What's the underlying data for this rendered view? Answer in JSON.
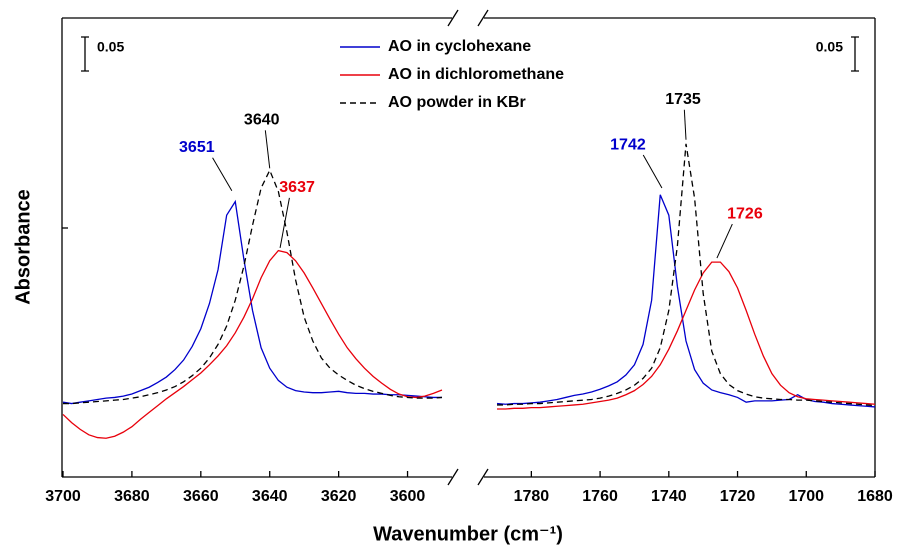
{
  "chart_data": {
    "type": "line",
    "x_label": "Wavenumber (cm⁻¹)",
    "y_label": "Absorbance",
    "ylim": [
      0,
      0.675
    ],
    "legend": "top-center",
    "series": [
      {
        "name": "AO in cyclohexane",
        "color": "#0000cc",
        "dash": false
      },
      {
        "name": "AO in dichloromethane",
        "color": "#e8000b",
        "dash": false
      },
      {
        "name": "AO powder in KBr",
        "color": "#000000",
        "dash": true
      }
    ],
    "panels": [
      {
        "xlim": [
          3700,
          3590
        ],
        "xticks": [
          3700,
          3680,
          3660,
          3640,
          3620,
          3600
        ],
        "scale_bar": 0.05,
        "x": [
          3700,
          3697.5,
          3695,
          3692.5,
          3690,
          3687.5,
          3685,
          3682.5,
          3680,
          3677.5,
          3675,
          3672.5,
          3670,
          3667.5,
          3665,
          3662.5,
          3660,
          3657.5,
          3655,
          3652.5,
          3650,
          3647.5,
          3645,
          3642.5,
          3640,
          3637.5,
          3635,
          3632.5,
          3630,
          3627.5,
          3625,
          3622.5,
          3620,
          3617.5,
          3615,
          3612.5,
          3610,
          3607.5,
          3605,
          3602.5,
          3600,
          3597.5,
          3595,
          3592.5,
          3590
        ],
        "series": [
          {
            "values": [
              0.11,
              0.108,
              0.11,
              0.112,
              0.114,
              0.116,
              0.117,
              0.119,
              0.122,
              0.127,
              0.132,
              0.139,
              0.147,
              0.158,
              0.172,
              0.192,
              0.218,
              0.255,
              0.305,
              0.385,
              0.405,
              0.32,
              0.245,
              0.19,
              0.16,
              0.142,
              0.132,
              0.127,
              0.125,
              0.124,
              0.124,
              0.125,
              0.126,
              0.124,
              0.123,
              0.123,
              0.122,
              0.122,
              0.121,
              0.121,
              0.12,
              0.119,
              0.118,
              0.117,
              0.117
            ]
          },
          {
            "values": [
              0.092,
              0.08,
              0.07,
              0.062,
              0.058,
              0.057,
              0.06,
              0.066,
              0.074,
              0.085,
              0.095,
              0.105,
              0.115,
              0.124,
              0.133,
              0.143,
              0.153,
              0.165,
              0.178,
              0.193,
              0.212,
              0.235,
              0.262,
              0.293,
              0.318,
              0.333,
              0.33,
              0.318,
              0.3,
              0.278,
              0.255,
              0.232,
              0.21,
              0.19,
              0.174,
              0.16,
              0.148,
              0.138,
              0.129,
              0.122,
              0.118,
              0.117,
              0.119,
              0.123,
              0.128
            ]
          },
          {
            "values": [
              0.108,
              0.108,
              0.109,
              0.11,
              0.111,
              0.112,
              0.113,
              0.114,
              0.116,
              0.118,
              0.121,
              0.124,
              0.128,
              0.133,
              0.14,
              0.149,
              0.16,
              0.175,
              0.195,
              0.222,
              0.26,
              0.31,
              0.37,
              0.425,
              0.451,
              0.42,
              0.36,
              0.29,
              0.235,
              0.2,
              0.175,
              0.16,
              0.15,
              0.142,
              0.135,
              0.13,
              0.126,
              0.123,
              0.12,
              0.118,
              0.117,
              0.116,
              0.116,
              0.116,
              0.117
            ]
          }
        ],
        "annotations": [
          {
            "x": 3651,
            "y": 0.418,
            "color": "#0000cc"
          },
          {
            "x": 3640,
            "y": 0.451,
            "color": "#000000"
          },
          {
            "x": 3637,
            "y": 0.334,
            "color": "#e8000b"
          }
        ]
      },
      {
        "xlim": [
          1790,
          1680
        ],
        "xticks": [
          1780,
          1760,
          1740,
          1720,
          1700,
          1680
        ],
        "scale_bar": 0.05,
        "x": [
          1790,
          1787.5,
          1785,
          1782.5,
          1780,
          1777.5,
          1775,
          1772.5,
          1770,
          1767.5,
          1765,
          1762.5,
          1760,
          1757.5,
          1755,
          1752.5,
          1750,
          1747.5,
          1745,
          1742.5,
          1740,
          1737.5,
          1735,
          1732.5,
          1730,
          1727.5,
          1725,
          1722.5,
          1720,
          1717.5,
          1715,
          1712.5,
          1710,
          1707.5,
          1705,
          1702.5,
          1700,
          1697.5,
          1695,
          1692.5,
          1690,
          1687.5,
          1685,
          1682.5,
          1680
        ],
        "series": [
          {
            "values": [
              0.108,
              0.107,
              0.108,
              0.108,
              0.109,
              0.11,
              0.112,
              0.114,
              0.117,
              0.12,
              0.122,
              0.125,
              0.129,
              0.134,
              0.14,
              0.15,
              0.165,
              0.195,
              0.26,
              0.415,
              0.385,
              0.28,
              0.2,
              0.158,
              0.138,
              0.128,
              0.124,
              0.121,
              0.117,
              0.11,
              0.112,
              0.112,
              0.112,
              0.113,
              0.114,
              0.121,
              0.114,
              0.111,
              0.11,
              0.108,
              0.107,
              0.106,
              0.105,
              0.104,
              0.103
            ]
          },
          {
            "values": [
              0.1,
              0.1,
              0.101,
              0.101,
              0.102,
              0.102,
              0.103,
              0.104,
              0.105,
              0.106,
              0.107,
              0.109,
              0.111,
              0.113,
              0.116,
              0.121,
              0.127,
              0.136,
              0.148,
              0.165,
              0.188,
              0.215,
              0.245,
              0.275,
              0.3,
              0.316,
              0.316,
              0.302,
              0.278,
              0.245,
              0.21,
              0.178,
              0.152,
              0.135,
              0.124,
              0.118,
              0.115,
              0.114,
              0.113,
              0.112,
              0.111,
              0.11,
              0.109,
              0.108,
              0.107
            ]
          },
          {
            "values": [
              0.106,
              0.106,
              0.107,
              0.107,
              0.108,
              0.108,
              0.109,
              0.11,
              0.111,
              0.112,
              0.113,
              0.114,
              0.116,
              0.119,
              0.123,
              0.128,
              0.135,
              0.145,
              0.16,
              0.19,
              0.245,
              0.34,
              0.49,
              0.41,
              0.27,
              0.185,
              0.152,
              0.136,
              0.127,
              0.122,
              0.118,
              0.116,
              0.115,
              0.114,
              0.114,
              0.113,
              0.113,
              0.112,
              0.111,
              0.11,
              0.109,
              0.108,
              0.107,
              0.106,
              0.105
            ]
          }
        ],
        "annotations": [
          {
            "x": 1742,
            "y": 0.422,
            "color": "#0000cc"
          },
          {
            "x": 1735,
            "y": 0.493,
            "color": "#000000"
          },
          {
            "x": 1726,
            "y": 0.319,
            "color": "#e8000b"
          }
        ]
      }
    ]
  }
}
